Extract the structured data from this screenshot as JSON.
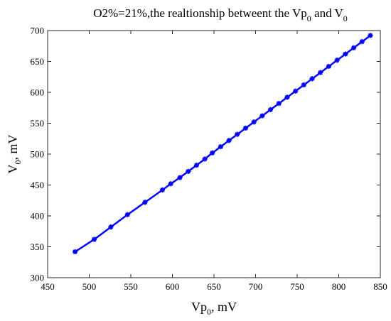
{
  "chart_data": {
    "type": "line",
    "title": {
      "main": "O2%=21%,the realtionship betweent the Vp",
      "sub1": "0",
      "mid": " and V",
      "sub2": "0"
    },
    "xlabel": {
      "base": "Vp",
      "sub": "0",
      "unit": ", mV"
    },
    "ylabel": {
      "base": "V",
      "sub": "0",
      "unit": ", mV"
    },
    "xlim": [
      450,
      850
    ],
    "ylim": [
      300,
      700
    ],
    "xticks": [
      450,
      500,
      550,
      600,
      650,
      700,
      750,
      800,
      850
    ],
    "yticks": [
      300,
      350,
      400,
      450,
      500,
      550,
      600,
      650,
      700
    ],
    "grid": false,
    "line_color": "#0000ff",
    "marker": "asterisk",
    "series": [
      {
        "x": [
          483,
          506,
          526,
          546,
          567,
          588,
          598,
          609,
          619,
          629,
          639,
          648,
          658,
          668,
          678,
          688,
          698,
          708,
          718,
          728,
          738,
          748,
          758,
          768,
          778,
          788,
          798,
          808,
          818,
          828,
          838
        ],
        "y": [
          342,
          362,
          382,
          402,
          422,
          442,
          452,
          462,
          472,
          482,
          492,
          502,
          512,
          522,
          532,
          542,
          552,
          562,
          572,
          582,
          592,
          602,
          612,
          622,
          632,
          642,
          652,
          662,
          672,
          682,
          692
        ]
      }
    ]
  }
}
